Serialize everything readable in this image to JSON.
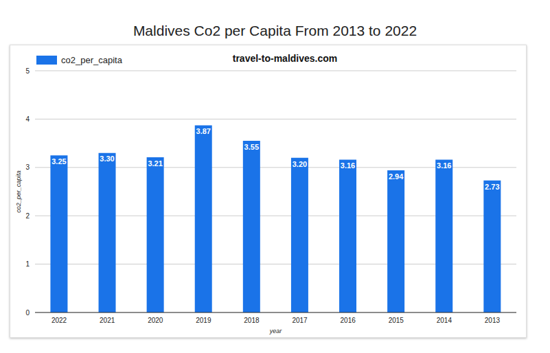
{
  "chart_data": {
    "type": "bar",
    "title": "Maldives Co2 per Capita From 2013 to 2022",
    "subtitle": "travel-to-maldives.com",
    "categories": [
      "2022",
      "2021",
      "2020",
      "2019",
      "2018",
      "2017",
      "2016",
      "2015",
      "2014",
      "2013"
    ],
    "series": [
      {
        "name": "co2_per_capita",
        "color": "#1a73e8",
        "values": [
          3.25,
          3.3,
          3.21,
          3.87,
          3.55,
          3.2,
          3.16,
          2.94,
          3.16,
          2.73
        ],
        "value_labels": [
          "3.25",
          "3.30",
          "3.21",
          "3.87",
          "3.55",
          "3.20",
          "3.16",
          "2.94",
          "3.16",
          "2.73"
        ]
      }
    ],
    "x_label": "year",
    "y_label": "co2_per_capita",
    "ylim": [
      0,
      5
    ],
    "yticks": [
      0,
      1,
      2,
      3,
      4,
      5
    ],
    "grid": true,
    "legend": "top-left",
    "data_labels": true
  }
}
